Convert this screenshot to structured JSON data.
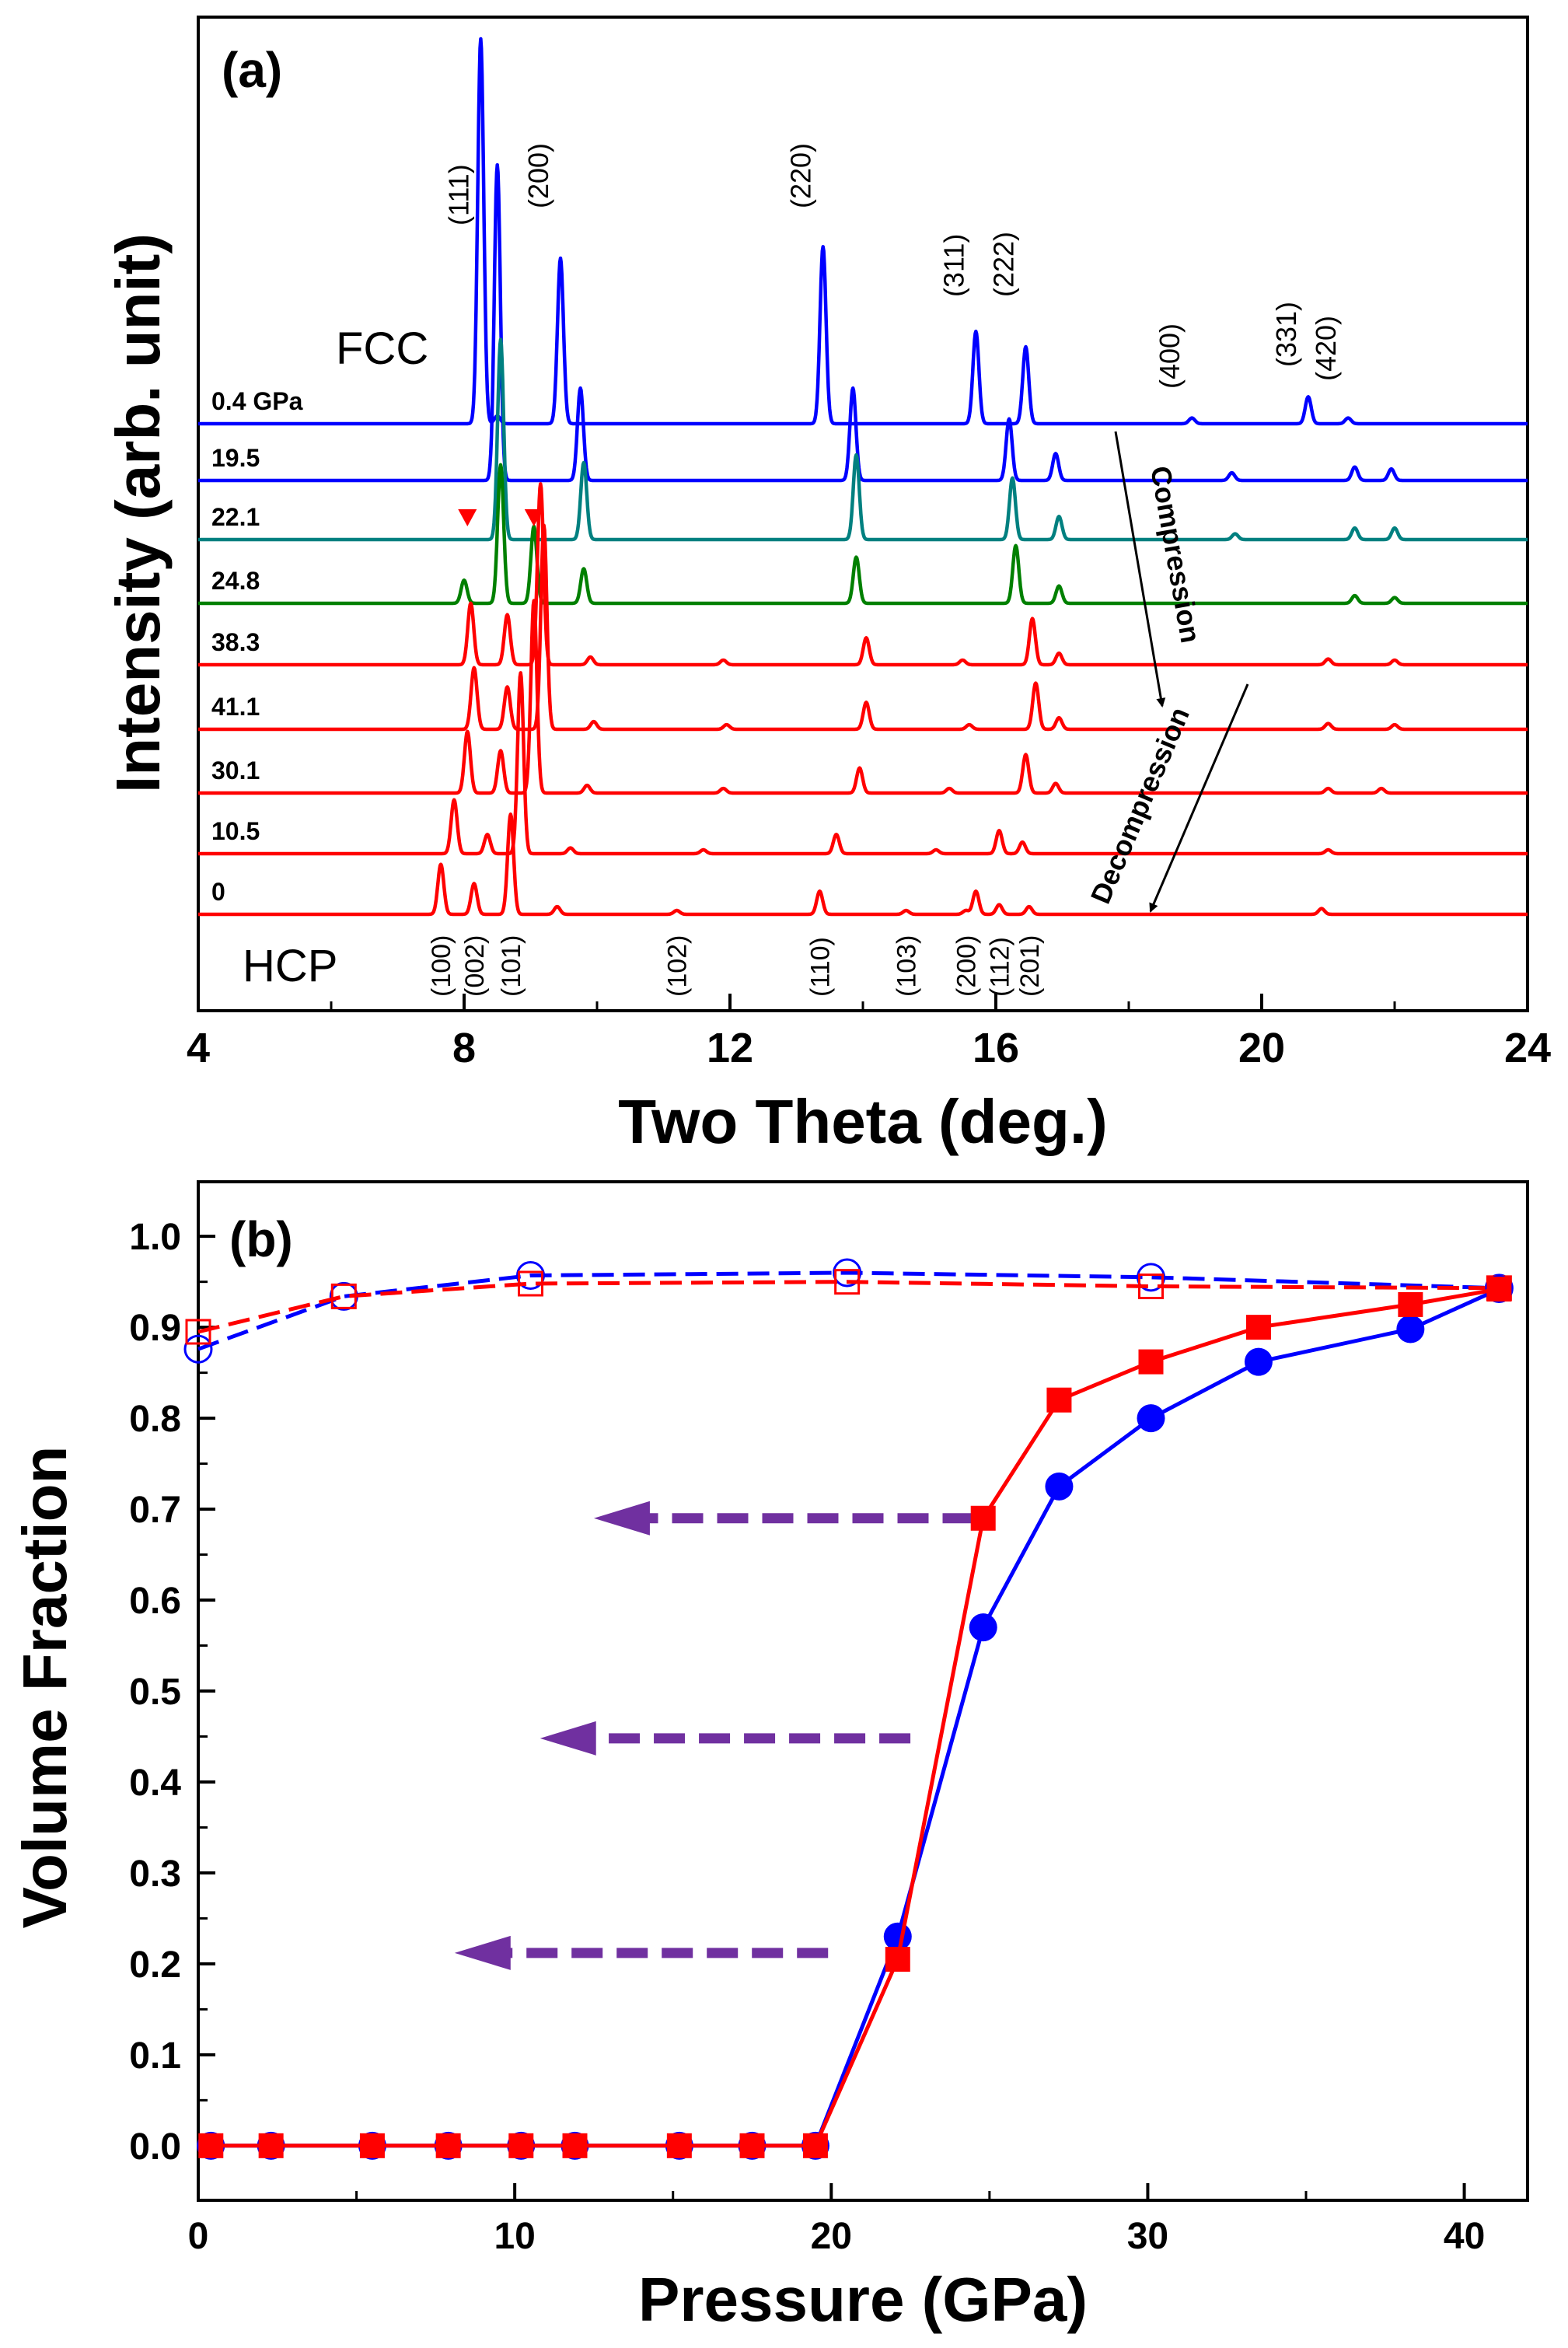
{
  "chart_data": [
    {
      "type": "line",
      "panel_label": "(a)",
      "title": "",
      "xlabel": "Two Theta (deg.)",
      "ylabel": "Intensity (arb. unit)",
      "xlim": [
        4,
        24
      ],
      "xticks": [
        "4",
        "8",
        "12",
        "16",
        "20",
        "24"
      ],
      "phase_labels": {
        "top": "FCC",
        "bottom": "HCP"
      },
      "fcc_reflections": [
        {
          "label": "(111)",
          "two_theta": 8.25
        },
        {
          "label": "(200)",
          "two_theta": 9.45
        },
        {
          "label": "(220)",
          "two_theta": 13.4
        },
        {
          "label": "(311)",
          "two_theta": 15.7
        },
        {
          "label": "(222)",
          "two_theta": 16.45
        },
        {
          "label": "(400)",
          "two_theta": 18.95
        },
        {
          "label": "(331)",
          "two_theta": 20.7
        },
        {
          "label": "(420)",
          "two_theta": 21.3
        }
      ],
      "hcp_reflections": [
        {
          "label": "(100)",
          "two_theta": 7.65
        },
        {
          "label": "(002)",
          "two_theta": 8.15
        },
        {
          "label": "(101)",
          "two_theta": 8.7
        },
        {
          "label": "(102)",
          "two_theta": 11.2
        },
        {
          "label": "(110)",
          "two_theta": 13.35
        },
        {
          "label": "(103)",
          "two_theta": 14.65
        },
        {
          "label": "(200)",
          "two_theta": 15.55
        },
        {
          "label": "(112)",
          "two_theta": 16.05
        },
        {
          "label": "(201)",
          "two_theta": 16.5
        }
      ],
      "arrows": [
        {
          "text": "Compression"
        },
        {
          "text": "Decompression"
        }
      ],
      "markers_22_1": [
        8.05,
        9.05
      ],
      "series": [
        {
          "name": "0.4 GPa",
          "color": "#0000ff",
          "peaks": [
            [
              8.25,
              10
            ],
            [
              8.5,
              0.2
            ],
            [
              9.45,
              4.3
            ],
            [
              13.4,
              4.6
            ],
            [
              15.7,
              2.4
            ],
            [
              16.45,
              2.0
            ],
            [
              18.95,
              0.15
            ],
            [
              20.7,
              0.7
            ],
            [
              21.3,
              0.15
            ]
          ]
        },
        {
          "name": "19.5",
          "color": "#0000ff",
          "peaks": [
            [
              8.5,
              8.2
            ],
            [
              9.75,
              2.4
            ],
            [
              13.85,
              2.4
            ],
            [
              16.2,
              1.6
            ],
            [
              16.9,
              0.7
            ],
            [
              19.55,
              0.2
            ],
            [
              21.4,
              0.35
            ],
            [
              21.95,
              0.3
            ]
          ]
        },
        {
          "name": "22.1",
          "color": "#008080",
          "peaks": [
            [
              8.55,
              5.2
            ],
            [
              9.8,
              2.0
            ],
            [
              13.9,
              2.2
            ],
            [
              16.25,
              1.6
            ],
            [
              16.95,
              0.6
            ],
            [
              19.6,
              0.15
            ],
            [
              21.4,
              0.3
            ],
            [
              22.0,
              0.3
            ]
          ]
        },
        {
          "name": "24.8",
          "color": "#008000",
          "peaks": [
            [
              8.0,
              0.6
            ],
            [
              8.55,
              3.6
            ],
            [
              9.05,
              2.0
            ],
            [
              9.8,
              0.9
            ],
            [
              13.9,
              1.2
            ],
            [
              16.3,
              1.5
            ],
            [
              16.95,
              0.45
            ],
            [
              21.4,
              0.2
            ],
            [
              22.0,
              0.15
            ]
          ]
        },
        {
          "name": "38.3",
          "color": "#ff0000",
          "peaks": [
            [
              8.1,
              1.6
            ],
            [
              8.65,
              1.3
            ],
            [
              9.15,
              4.7
            ],
            [
              9.9,
              0.2
            ],
            [
              11.9,
              0.12
            ],
            [
              14.05,
              0.7
            ],
            [
              15.5,
              0.12
            ],
            [
              16.55,
              1.2
            ],
            [
              16.95,
              0.3
            ],
            [
              21.0,
              0.15
            ],
            [
              22.0,
              0.12
            ]
          ]
        },
        {
          "name": "41.1",
          "color": "#ff0000",
          "peaks": [
            [
              8.15,
              1.6
            ],
            [
              8.65,
              1.1
            ],
            [
              9.2,
              5.3
            ],
            [
              9.95,
              0.2
            ],
            [
              11.95,
              0.12
            ],
            [
              14.05,
              0.7
            ],
            [
              15.6,
              0.12
            ],
            [
              16.6,
              1.2
            ],
            [
              16.95,
              0.3
            ],
            [
              21.0,
              0.15
            ],
            [
              22.0,
              0.12
            ]
          ]
        },
        {
          "name": "30.1",
          "color": "#ff0000",
          "peaks": [
            [
              8.05,
              1.6
            ],
            [
              8.55,
              1.1
            ],
            [
              9.05,
              5.0
            ],
            [
              9.85,
              0.2
            ],
            [
              11.9,
              0.12
            ],
            [
              13.95,
              0.65
            ],
            [
              15.3,
              0.12
            ],
            [
              16.45,
              1.0
            ],
            [
              16.9,
              0.25
            ],
            [
              21.0,
              0.12
            ],
            [
              21.8,
              0.12
            ]
          ]
        },
        {
          "name": "10.5",
          "color": "#ff0000",
          "peaks": [
            [
              7.85,
              1.4
            ],
            [
              8.35,
              0.5
            ],
            [
              8.85,
              4.7
            ],
            [
              9.6,
              0.15
            ],
            [
              11.6,
              0.1
            ],
            [
              13.6,
              0.5
            ],
            [
              15.1,
              0.1
            ],
            [
              16.05,
              0.6
            ],
            [
              16.4,
              0.3
            ],
            [
              21.0,
              0.1
            ]
          ]
        },
        {
          "name": "0",
          "color": "#ff0000",
          "peaks": [
            [
              7.65,
              1.3
            ],
            [
              8.15,
              0.8
            ],
            [
              8.7,
              2.6
            ],
            [
              9.4,
              0.2
            ],
            [
              11.2,
              0.1
            ],
            [
              13.35,
              0.6
            ],
            [
              14.65,
              0.1
            ],
            [
              15.55,
              0.1
            ],
            [
              15.7,
              0.6
            ],
            [
              16.05,
              0.25
            ],
            [
              16.5,
              0.2
            ],
            [
              20.9,
              0.15
            ]
          ]
        }
      ]
    },
    {
      "type": "line",
      "panel_label": "(b)",
      "title": "",
      "xlabel": "Pressure (GPa)",
      "ylabel": "Volume Fraction",
      "xlim": [
        0,
        42
      ],
      "ylim": [
        -0.06,
        1.06
      ],
      "xticks": [
        "0",
        "10",
        "20",
        "30",
        "40"
      ],
      "yticks": [
        "0.0",
        "0.1",
        "0.2",
        "0.3",
        "0.4",
        "0.5",
        "0.6",
        "0.7",
        "0.8",
        "0.9",
        "1.0"
      ],
      "series": [
        {
          "name": "compression-blue-circles",
          "color": "#0000ff",
          "marker": "circle-filled",
          "line": "solid",
          "x": [
            0.4,
            2.3,
            5.5,
            7.9,
            10.2,
            11.9,
            15.2,
            17.5,
            19.5,
            22.1,
            24.8,
            27.2,
            30.1,
            33.5,
            38.3,
            41.1
          ],
          "y": [
            0,
            0,
            0,
            0,
            0,
            0,
            0,
            0,
            0,
            0.23,
            0.57,
            0.725,
            0.8,
            0.862,
            0.898,
            0.942
          ]
        },
        {
          "name": "compression-red-squares",
          "color": "#ff0000",
          "marker": "square-filled",
          "line": "solid",
          "x": [
            0.4,
            2.3,
            5.5,
            7.9,
            10.2,
            11.9,
            15.2,
            17.5,
            19.5,
            22.1,
            24.8,
            27.2,
            30.1,
            33.5,
            38.3,
            41.1
          ],
          "y": [
            0,
            0,
            0,
            0,
            0,
            0,
            0,
            0,
            0,
            0.205,
            0.69,
            0.82,
            0.862,
            0.9,
            0.925,
            0.942
          ]
        },
        {
          "name": "decompression-blue-circles",
          "color": "#0000ff",
          "marker": "circle-open",
          "line": "dashed",
          "x": [
            0,
            4.6,
            10.5,
            20.5,
            30.1,
            41.1
          ],
          "y": [
            0.876,
            0.934,
            0.957,
            0.96,
            0.955,
            0.943
          ]
        },
        {
          "name": "decompression-red-squares",
          "color": "#ff0000",
          "marker": "square-open",
          "line": "dashed",
          "x": [
            0,
            4.6,
            10.5,
            20.5,
            30.1,
            41.1
          ],
          "y": [
            0.895,
            0.934,
            0.948,
            0.95,
            0.945,
            0.943
          ]
        }
      ],
      "arrows": [
        {
          "from": [
            24.5,
            0.69
          ],
          "to": [
            12.5,
            0.69
          ],
          "color": "#7030a0"
        },
        {
          "from": [
            22.5,
            0.448
          ],
          "to": [
            10.8,
            0.448
          ],
          "color": "#7030a0"
        },
        {
          "from": [
            19.9,
            0.212
          ],
          "to": [
            8.1,
            0.212
          ],
          "color": "#7030a0"
        }
      ]
    }
  ]
}
